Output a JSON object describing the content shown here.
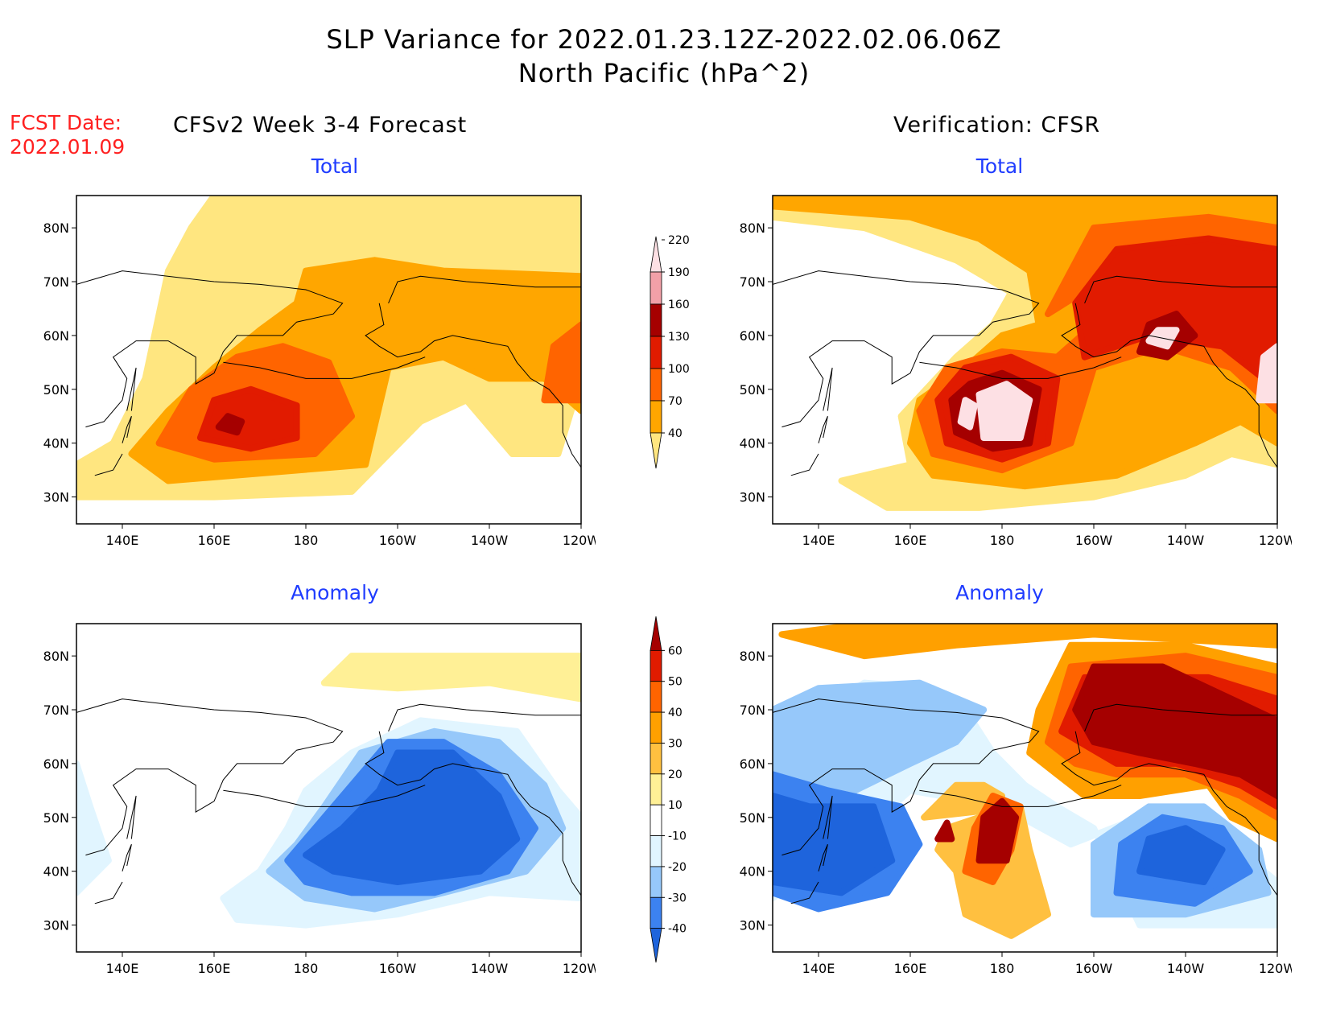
{
  "header": {
    "title_line1": "SLP Variance for 2022.01.23.12Z-2022.02.06.06Z",
    "title_line2": "North Pacific (hPa^2)",
    "fcst_label": "FCST Date:",
    "fcst_date": "2022.01.09",
    "left_subtitle": "CFSv2 Week 3-4 Forecast",
    "right_subtitle": "Verification: CFSR"
  },
  "panels": {
    "tl_title": "Total",
    "tr_title": "Total",
    "bl_title": "Anomaly",
    "br_title": "Anomaly"
  },
  "axes": {
    "lat_labels": [
      "80N",
      "70N",
      "60N",
      "50N",
      "40N",
      "30N"
    ],
    "lon_labels": [
      "140E",
      "160E",
      "180",
      "160W",
      "140W",
      "120W"
    ]
  },
  "colorbars": {
    "total": {
      "levels": [
        "40",
        "70",
        "100",
        "130",
        "160",
        "190",
        "220"
      ],
      "colors": [
        "#ffe680",
        "#ffa600",
        "#ff6400",
        "#e11b00",
        "#a50000",
        "#f2a0a8",
        "#fde0e4"
      ]
    },
    "anomaly": {
      "levels": [
        "-40",
        "-30",
        "-20",
        "-10",
        "10",
        "20",
        "30",
        "40",
        "50",
        "60"
      ],
      "colors": [
        "#1e64dc",
        "#3c82f0",
        "#96c8fa",
        "#e1f5ff",
        "#ffffff",
        "#fff096",
        "#ffc040",
        "#ffa000",
        "#ff6400",
        "#e11b00",
        "#a50000"
      ]
    }
  }
}
